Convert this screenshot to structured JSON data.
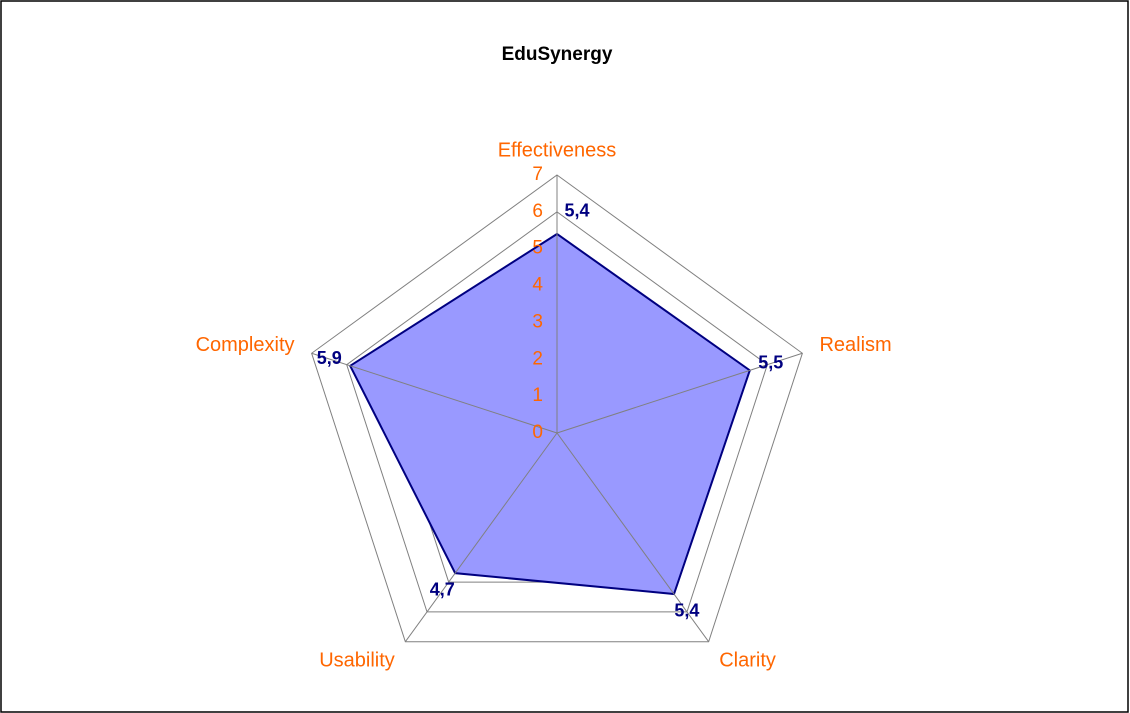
{
  "chart_data": {
    "type": "radar",
    "title": "EduSynergy",
    "categories": [
      "Effectiveness",
      "Realism",
      "Clarity",
      "Usability",
      "Complexity"
    ],
    "values": [
      5.4,
      5.5,
      5.4,
      4.7,
      5.9
    ],
    "value_labels": [
      "5,4",
      "5,5",
      "5,4",
      "4,7",
      "5,9"
    ],
    "color": "#9999ff",
    "line_color": "#000080",
    "rlim": [
      0,
      7
    ],
    "rticks": [
      0,
      1,
      2,
      3,
      4,
      5,
      6,
      7
    ],
    "grid": true
  }
}
